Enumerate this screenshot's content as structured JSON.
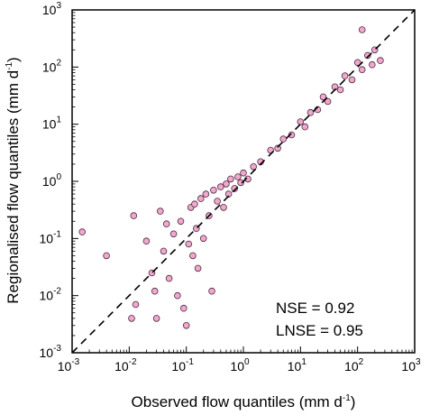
{
  "chart_data": {
    "type": "scatter",
    "xlabel": "Observed flow quantiles (mm d",
    "xlabel_sup": "-1",
    "xlabel_suffix": ")",
    "ylabel": "Regionalised flow quantiles (mm d",
    "ylabel_sup": "-1",
    "ylabel_suffix": ")",
    "xscale": "log",
    "yscale": "log",
    "xlim": [
      0.001,
      1000
    ],
    "ylim": [
      0.001,
      1000
    ],
    "ticks": [
      {
        "value": 0.001,
        "base": "10",
        "exp": "-3"
      },
      {
        "value": 0.01,
        "base": "10",
        "exp": "-2"
      },
      {
        "value": 0.1,
        "base": "10",
        "exp": "-1"
      },
      {
        "value": 1,
        "base": "10",
        "exp": "0"
      },
      {
        "value": 10,
        "base": "10",
        "exp": "1"
      },
      {
        "value": 100,
        "base": "10",
        "exp": "2"
      },
      {
        "value": 1000,
        "base": "10",
        "exp": "3"
      }
    ],
    "reference_line": {
      "type": "1:1",
      "style": "dashed",
      "color": "#000000"
    },
    "annotations": [
      "NSE = 0.92",
      "LNSE = 0.95"
    ],
    "marker": {
      "fill": "#f2a7cf",
      "stroke": "#4a2a3a"
    },
    "grid": false,
    "legend": "none",
    "points": [
      {
        "x": 0.0015,
        "y": 0.13
      },
      {
        "x": 0.004,
        "y": 0.05
      },
      {
        "x": 0.012,
        "y": 0.25
      },
      {
        "x": 0.011,
        "y": 0.004
      },
      {
        "x": 0.013,
        "y": 0.007
      },
      {
        "x": 0.02,
        "y": 0.09
      },
      {
        "x": 0.025,
        "y": 0.025
      },
      {
        "x": 0.028,
        "y": 0.012
      },
      {
        "x": 0.03,
        "y": 0.004
      },
      {
        "x": 0.035,
        "y": 0.3
      },
      {
        "x": 0.04,
        "y": 0.06
      },
      {
        "x": 0.045,
        "y": 0.18
      },
      {
        "x": 0.05,
        "y": 0.02
      },
      {
        "x": 0.06,
        "y": 0.12
      },
      {
        "x": 0.07,
        "y": 0.01
      },
      {
        "x": 0.08,
        "y": 0.2
      },
      {
        "x": 0.09,
        "y": 0.006
      },
      {
        "x": 0.1,
        "y": 0.003
      },
      {
        "x": 0.11,
        "y": 0.08
      },
      {
        "x": 0.12,
        "y": 0.35
      },
      {
        "x": 0.13,
        "y": 0.05
      },
      {
        "x": 0.14,
        "y": 0.4
      },
      {
        "x": 0.15,
        "y": 0.15
      },
      {
        "x": 0.16,
        "y": 0.03
      },
      {
        "x": 0.18,
        "y": 0.5
      },
      {
        "x": 0.2,
        "y": 0.1
      },
      {
        "x": 0.22,
        "y": 0.6
      },
      {
        "x": 0.25,
        "y": 0.25
      },
      {
        "x": 0.28,
        "y": 0.012
      },
      {
        "x": 0.3,
        "y": 0.7
      },
      {
        "x": 0.35,
        "y": 0.45
      },
      {
        "x": 0.4,
        "y": 0.8
      },
      {
        "x": 0.45,
        "y": 0.35
      },
      {
        "x": 0.5,
        "y": 0.9
      },
      {
        "x": 0.55,
        "y": 0.6
      },
      {
        "x": 0.6,
        "y": 1.1
      },
      {
        "x": 0.7,
        "y": 0.75
      },
      {
        "x": 0.8,
        "y": 1.2
      },
      {
        "x": 0.9,
        "y": 0.95
      },
      {
        "x": 1.0,
        "y": 1.4
      },
      {
        "x": 1.2,
        "y": 1.1
      },
      {
        "x": 1.5,
        "y": 1.8
      },
      {
        "x": 2.0,
        "y": 2.2
      },
      {
        "x": 3.0,
        "y": 3.5
      },
      {
        "x": 4.0,
        "y": 3.8
      },
      {
        "x": 5.0,
        "y": 5.5
      },
      {
        "x": 7.0,
        "y": 6.5
      },
      {
        "x": 10.0,
        "y": 11.0
      },
      {
        "x": 12.0,
        "y": 9.0
      },
      {
        "x": 15.0,
        "y": 16.0
      },
      {
        "x": 20.0,
        "y": 18.0
      },
      {
        "x": 25.0,
        "y": 30.0
      },
      {
        "x": 30.0,
        "y": 25.0
      },
      {
        "x": 40.0,
        "y": 45.0
      },
      {
        "x": 50.0,
        "y": 40.0
      },
      {
        "x": 60.0,
        "y": 70.0
      },
      {
        "x": 80.0,
        "y": 60.0
      },
      {
        "x": 100.0,
        "y": 120.0
      },
      {
        "x": 120.0,
        "y": 90.0
      },
      {
        "x": 150.0,
        "y": 160.0
      },
      {
        "x": 180.0,
        "y": 110.0
      },
      {
        "x": 200.0,
        "y": 200.0
      },
      {
        "x": 120.0,
        "y": 450.0
      },
      {
        "x": 250.0,
        "y": 130.0
      }
    ]
  }
}
